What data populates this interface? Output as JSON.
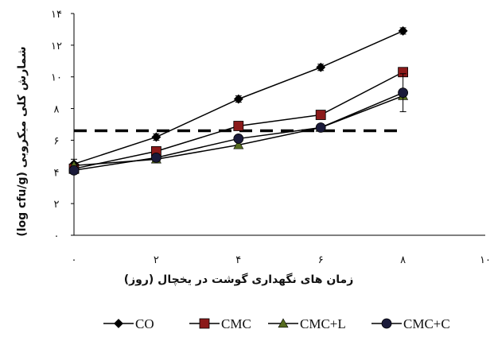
{
  "chart_data": {
    "type": "line",
    "title": "",
    "xlabel": "زمان های نگهداری گوشت در یخچال (روز)",
    "ylabel": "شمارش کلی میکروبی (log cfu/g)",
    "x_ticks": [
      "۰",
      "۲",
      "۴",
      "۶",
      "۸",
      "۱۰"
    ],
    "x_tick_values": [
      0,
      2,
      4,
      6,
      8,
      10
    ],
    "y_ticks": [
      "۰",
      "۲",
      "۴",
      "۶",
      "۸",
      "۱۰",
      "۱۲",
      "۱۴"
    ],
    "y_tick_values": [
      0,
      2,
      4,
      6,
      8,
      10,
      12,
      14
    ],
    "xlim": [
      0,
      10
    ],
    "ylim": [
      0,
      14
    ],
    "grid": false,
    "legend_position": "bottom",
    "x": [
      0,
      2,
      4,
      6,
      8
    ],
    "threshold": {
      "value": 6.6,
      "style": "dashed",
      "color": "#000000"
    },
    "series": [
      {
        "name": "CO",
        "marker": "diamond",
        "color": "#000000",
        "values": [
          4.5,
          6.2,
          8.6,
          10.6,
          12.9
        ],
        "error": [
          0.3,
          0.2,
          0.2,
          0.2,
          0.2
        ]
      },
      {
        "name": "CMC",
        "marker": "square",
        "color": "#8b1a1a",
        "values": [
          4.2,
          5.3,
          6.9,
          7.6,
          10.3
        ],
        "error": [
          0.2,
          0.2,
          0.2,
          0.2,
          0.2
        ]
      },
      {
        "name": "CMC+L",
        "marker": "triangle",
        "color": "#556b1e",
        "values": [
          4.4,
          4.8,
          5.7,
          6.8,
          8.8
        ],
        "error": [
          0.2,
          0.2,
          0.2,
          0.2,
          0.2
        ]
      },
      {
        "name": "CMC+C",
        "marker": "circle",
        "color": "#1a1a3a",
        "values": [
          4.1,
          4.9,
          6.1,
          6.8,
          9.0
        ],
        "error": [
          0.2,
          0.2,
          0.2,
          0.2,
          1.2
        ]
      }
    ]
  }
}
